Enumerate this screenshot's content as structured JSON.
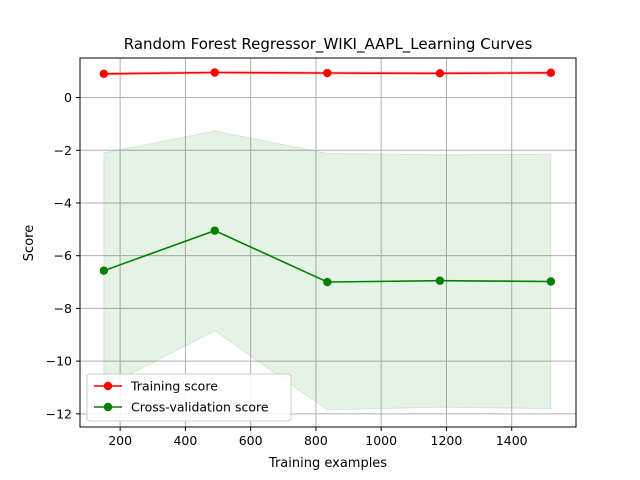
{
  "chart_data": {
    "type": "line",
    "title": "Random Forest Regressor_WIKI_AAPL_Learning Curves",
    "xlabel": "Training examples",
    "ylabel": "Score",
    "xlim": [
      77,
      1597
    ],
    "ylim": [
      -12.5,
      1.5
    ],
    "xticks": [
      200,
      400,
      600,
      800,
      1000,
      1200,
      1400
    ],
    "yticks": [
      0,
      -2,
      -4,
      -6,
      -8,
      -10,
      -12
    ],
    "grid": true,
    "legend_position": "lower-left",
    "x": [
      150,
      490,
      835,
      1180,
      1520
    ],
    "series": [
      {
        "name": "Training score",
        "color": "#ff0000",
        "values": [
          0.9,
          0.95,
          0.93,
          0.92,
          0.94
        ],
        "band_lower": [
          0.85,
          0.9,
          0.88,
          0.87,
          0.89
        ],
        "band_upper": [
          0.95,
          1.0,
          0.98,
          0.97,
          0.99
        ]
      },
      {
        "name": "Cross-validation score",
        "color": "#008000",
        "band_color": "#008000",
        "values": [
          -6.57,
          -5.05,
          -7.0,
          -6.95,
          -6.98
        ],
        "band_lower": [
          -11.0,
          -8.85,
          -11.85,
          -11.75,
          -11.8
        ],
        "band_upper": [
          -2.1,
          -1.27,
          -2.12,
          -2.17,
          -2.15
        ]
      }
    ]
  }
}
